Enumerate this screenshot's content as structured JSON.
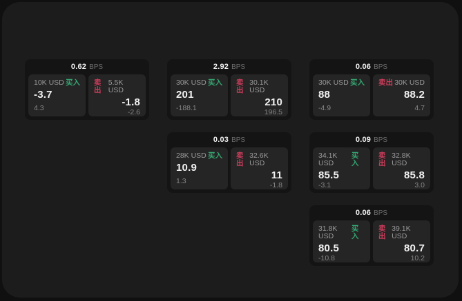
{
  "labels": {
    "bps_unit": "BPS",
    "buy": "买入",
    "sell": "卖出"
  },
  "colors": {
    "buy_green": "#35a772",
    "sell_red": "#cc3d5b",
    "panel_background": "#1c1c1c",
    "card_background": "#141414",
    "tile_background": "#252525"
  },
  "cards": [
    {
      "bps": "0.62",
      "buy": {
        "amount": "10K USD",
        "price": "-3.7",
        "change": "4.3"
      },
      "sell": {
        "amount": "5.5K USD",
        "price": "-1.8",
        "change": "-2.6"
      }
    },
    {
      "bps": "2.92",
      "buy": {
        "amount": "30K USD",
        "price": "201",
        "change": "-188.1"
      },
      "sell": {
        "amount": "30.1K USD",
        "price": "210",
        "change": "196.5"
      }
    },
    {
      "bps": "0.06",
      "buy": {
        "amount": "30K USD",
        "price": "88",
        "change": "-4.9"
      },
      "sell": {
        "amount": "30K USD",
        "price": "88.2",
        "change": "4.7"
      }
    },
    {
      "bps": "0.03",
      "buy": {
        "amount": "28K USD",
        "price": "10.9",
        "change": "1.3"
      },
      "sell": {
        "amount": "32.6K USD",
        "price": "11",
        "change": "-1.8"
      }
    },
    {
      "bps": "0.09",
      "buy": {
        "amount": "34.1K USD",
        "price": "85.5",
        "change": "-3.1"
      },
      "sell": {
        "amount": "32.8K USD",
        "price": "85.8",
        "change": "3.0"
      }
    },
    {
      "bps": "0.06",
      "buy": {
        "amount": "31.8K USD",
        "price": "80.5",
        "change": "-10.8"
      },
      "sell": {
        "amount": "39.1K USD",
        "price": "80.7",
        "change": "10.2"
      }
    }
  ]
}
